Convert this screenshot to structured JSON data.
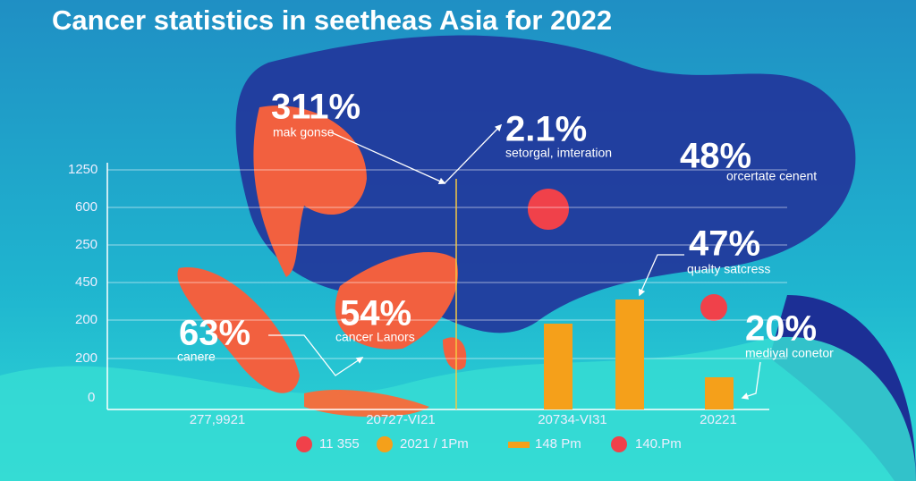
{
  "title": "Cancer statistics in seetheas Asia for 2022",
  "y_axis_labels": [
    "1250",
    "600",
    "250",
    "450",
    "200",
    "200",
    "0"
  ],
  "x_axis_labels": [
    "277,9921",
    "20727-VI21",
    "20734-VI31",
    "20221"
  ],
  "callouts": [
    {
      "value": "311%",
      "label": "mak gonse"
    },
    {
      "value": "2.1%",
      "label": "setorgal, imteration"
    },
    {
      "value": "48%",
      "label": "orcertate cenent"
    },
    {
      "value": "47%",
      "label": "qualty satcress"
    },
    {
      "value": "63%",
      "label": "canere"
    },
    {
      "value": "54%",
      "label": "cancer Lanors"
    },
    {
      "value": "20%",
      "label": "mediyal conetor"
    }
  ],
  "legend": [
    "11 355",
    "2021 / 1Pm",
    "148 Pm",
    "140.Pm"
  ]
}
